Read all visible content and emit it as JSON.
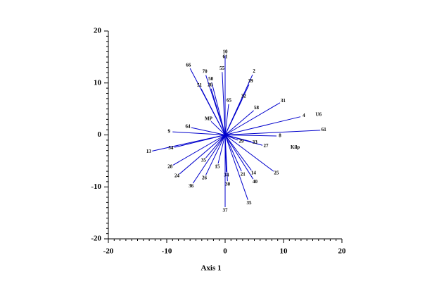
{
  "chart_data": {
    "type": "biplot",
    "xlabel": "Axis 1",
    "labels": [
      "66",
      "70",
      "50",
      "20",
      "51",
      "10",
      "61",
      "55",
      "2",
      "39",
      "65",
      "32",
      "31",
      "58",
      "4",
      "61",
      "8",
      "9",
      "64",
      "13",
      "54",
      "28",
      "24",
      "36",
      "26",
      "35",
      "15",
      "34",
      "30",
      "37",
      "35",
      "21",
      "14",
      "40",
      "25",
      "27",
      "33",
      "29",
      "MP"
    ],
    "x": [
      -6.0,
      -3.3,
      -2.3,
      -2.4,
      -4.1,
      0,
      0,
      -0.5,
      4.7,
      4.1,
      0.6,
      2.9,
      9.4,
      4.9,
      12.9,
      16.3,
      8.8,
      -9.0,
      -5.8,
      -12.5,
      -8.7,
      -8.9,
      -7.8,
      -5.5,
      -3.3,
      -3.3,
      -1.2,
      0.2,
      0.4,
      0,
      3.9,
      2.8,
      4.5,
      4.8,
      8.3,
      6.4,
      4.5,
      2.2,
      -2.4
    ],
    "y": [
      12.8,
      11.5,
      10.1,
      8.9,
      8.9,
      15.3,
      14.3,
      12.1,
      11.6,
      9.7,
      5.9,
      6.8,
      6.2,
      4.7,
      3.5,
      0.9,
      -0.2,
      0.6,
      1.4,
      -3.1,
      -2.4,
      -5.8,
      -7.5,
      -9.3,
      -7.7,
      -4.4,
      -5.5,
      -7.1,
      -8.9,
      -13.9,
      -12.5,
      -7.0,
      -6.8,
      -8.5,
      -7.0,
      -2.0,
      -1.3,
      -1.0,
      2.6
    ],
    "color": "#0000cc",
    "annotations": [
      {
        "text": "U6",
        "x": 16.0,
        "y": 3.9
      },
      {
        "text": "Kilp",
        "x": 12.0,
        "y": -2.4
      }
    ],
    "xlim": [
      -20,
      20
    ],
    "ylim": [
      -20,
      20
    ],
    "xticks": [
      -20,
      -10,
      0,
      10,
      20
    ],
    "yticks": [
      -20,
      -10,
      0,
      10,
      20
    ]
  }
}
